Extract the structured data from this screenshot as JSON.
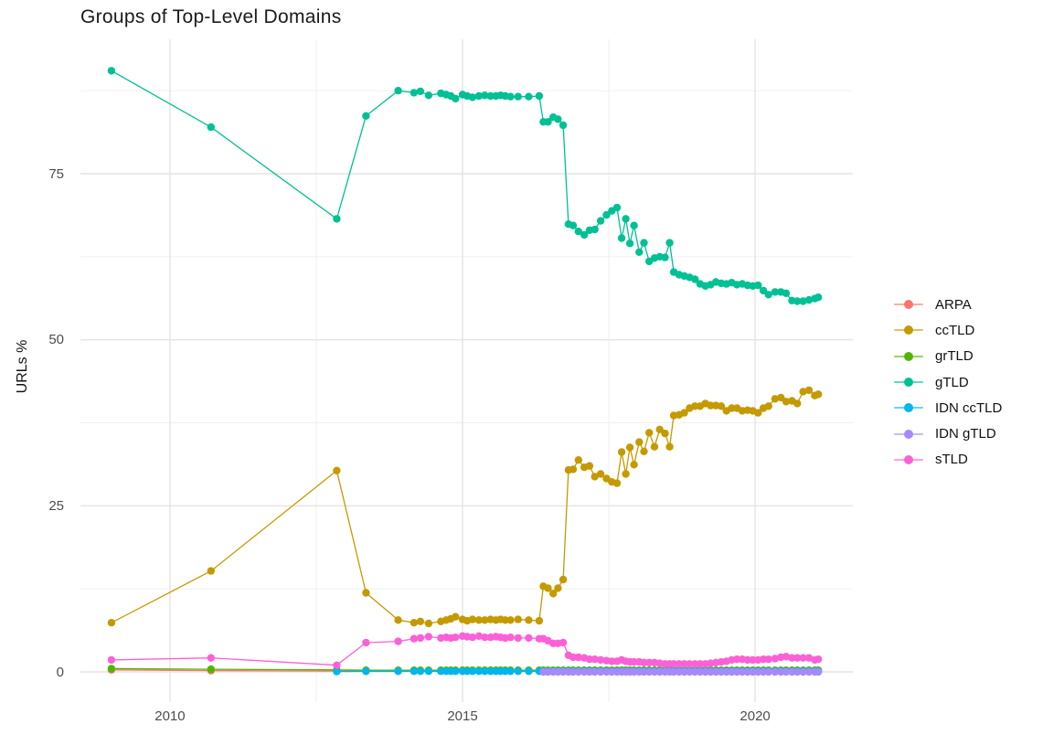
{
  "title": "Groups of Top-Level Domains",
  "axes": {
    "y_label": "URLs %",
    "x_tick_labels": [
      "2010",
      "2015",
      "2020"
    ],
    "y_tick_labels": [
      "0",
      "25",
      "50",
      "75"
    ]
  },
  "legend": {
    "position": "right",
    "items": [
      {
        "label": "ARPA",
        "color": "#F8766D"
      },
      {
        "label": "ccTLD",
        "color": "#C49A00"
      },
      {
        "label": "grTLD",
        "color": "#53B400"
      },
      {
        "label": "gTLD",
        "color": "#00C094"
      },
      {
        "label": "IDN ccTLD",
        "color": "#00B6EB"
      },
      {
        "label": "IDN gTLD",
        "color": "#A58AFF"
      },
      {
        "label": "sTLD",
        "color": "#FB61D7"
      }
    ]
  },
  "chart_data": {
    "type": "line",
    "title": "Groups of Top-Level Domains",
    "xlabel": "",
    "ylabel": "URLs %",
    "xlim": [
      2008.47,
      2021.67
    ],
    "ylim": [
      -4.54,
      95.23
    ],
    "x_major_ticks": [
      2010,
      2015,
      2020
    ],
    "x_minor_gridlines": [
      2012.5,
      2017.5
    ],
    "y_major_ticks": [
      0,
      25,
      50,
      75
    ],
    "y_minor_gridlines": [
      12.5,
      37.5,
      62.5,
      87.5
    ],
    "grid": true,
    "legend_position": "right",
    "x_grid": [
      2013.9,
      2014.17,
      2014.28,
      2014.42,
      2014.63,
      2014.72,
      2014.8,
      2014.88,
      2015.0,
      2015.08,
      2015.17,
      2015.28,
      2015.38,
      2015.48,
      2015.57,
      2015.65,
      2015.73,
      2015.82,
      2015.95,
      2016.13,
      2016.31,
      2016.38,
      2016.46,
      2016.55,
      2016.63,
      2016.72,
      2016.81,
      2016.89,
      2016.98,
      2017.08,
      2017.17,
      2017.26,
      2017.36,
      2017.46,
      2017.55,
      2017.64,
      2017.72,
      2017.79,
      2017.86,
      2017.93,
      2018.02,
      2018.1,
      2018.19,
      2018.28,
      2018.37,
      2018.46,
      2018.54,
      2018.61,
      2018.7,
      2018.79,
      2018.88,
      2018.97,
      2019.06,
      2019.15,
      2019.24,
      2019.33,
      2019.42,
      2019.51,
      2019.6,
      2019.69,
      2019.78,
      2019.87,
      2019.96,
      2020.05,
      2020.14,
      2020.23,
      2020.34,
      2020.44,
      2020.53,
      2020.63,
      2020.72,
      2020.82,
      2020.92,
      2021.02,
      2021.08
    ],
    "series": [
      {
        "name": "ARPA",
        "color": "#F8766D",
        "prefix_points": [
          [
            2009.0,
            0.3
          ],
          [
            2010.7,
            0.2
          ],
          [
            2012.85,
            0.12
          ],
          [
            2013.35,
            0.1
          ]
        ]
      },
      {
        "name": "ccTLD",
        "color": "#C49A00",
        "prefix_points": [
          [
            2009.0,
            7.4
          ],
          [
            2010.7,
            15.2
          ],
          [
            2012.85,
            30.3
          ],
          [
            2013.35,
            11.9
          ]
        ],
        "grid_values": [
          7.8,
          7.4,
          7.6,
          7.3,
          7.6,
          7.8,
          8.0,
          8.3,
          7.9,
          7.7,
          7.9,
          7.8,
          7.8,
          7.9,
          7.8,
          7.9,
          7.8,
          7.8,
          7.9,
          7.8,
          7.7,
          12.9,
          12.6,
          11.8,
          12.6,
          13.9,
          30.4,
          30.5,
          31.9,
          30.8,
          31.0,
          29.4,
          29.8,
          29.1,
          28.6,
          28.4,
          33.1,
          29.8,
          33.8,
          31.2,
          34.6,
          33.2,
          36.0,
          33.9,
          36.5,
          35.9,
          33.9,
          38.6,
          38.7,
          39.0,
          39.7,
          40.0,
          40.0,
          40.4,
          40.1,
          40.1,
          40.0,
          39.3,
          39.7,
          39.7,
          39.3,
          39.4,
          39.3,
          39.0,
          39.7,
          40.0,
          41.1,
          41.3,
          40.7,
          40.8,
          40.4,
          42.2,
          42.4,
          41.6,
          41.8
        ]
      },
      {
        "name": "grTLD",
        "color": "#53B400",
        "prefix_points": [
          [
            2009.0,
            0.5
          ],
          [
            2010.7,
            0.4
          ],
          [
            2012.85,
            0.3
          ],
          [
            2013.35,
            0.25
          ]
        ],
        "grid_const": 0.25
      },
      {
        "name": "gTLD",
        "color": "#00C094",
        "prefix_points": [
          [
            2009.0,
            90.5
          ],
          [
            2010.7,
            82.0
          ],
          [
            2012.85,
            68.2
          ],
          [
            2013.35,
            83.7
          ]
        ],
        "grid_values": [
          87.5,
          87.2,
          87.4,
          86.8,
          87.1,
          86.9,
          86.7,
          86.3,
          86.9,
          86.7,
          86.5,
          86.7,
          86.8,
          86.7,
          86.7,
          86.8,
          86.7,
          86.6,
          86.6,
          86.6,
          86.7,
          82.8,
          82.8,
          83.5,
          83.2,
          82.3,
          67.4,
          67.2,
          66.3,
          65.8,
          66.5,
          66.6,
          67.9,
          68.8,
          69.4,
          69.9,
          65.3,
          68.2,
          64.5,
          67.2,
          63.2,
          64.6,
          61.8,
          62.3,
          62.5,
          62.4,
          64.6,
          60.2,
          59.8,
          59.6,
          59.4,
          59.1,
          58.4,
          58.1,
          58.3,
          58.7,
          58.5,
          58.4,
          58.6,
          58.3,
          58.4,
          58.2,
          58.1,
          58.2,
          57.4,
          56.8,
          57.2,
          57.2,
          57.0,
          55.9,
          55.8,
          55.8,
          56.0,
          56.2,
          56.4
        ]
      },
      {
        "name": "IDN ccTLD",
        "color": "#00B6EB",
        "prefix_points": [
          [
            2012.85,
            0.05
          ],
          [
            2013.35,
            0.1
          ]
        ],
        "grid_const": 0.1
      },
      {
        "name": "IDN gTLD",
        "color": "#A58AFF",
        "prefix_points": [],
        "grid_const": 0.0,
        "grid_from": 2016.38
      },
      {
        "name": "sTLD",
        "color": "#FB61D7",
        "prefix_points": [
          [
            2009.0,
            1.8
          ],
          [
            2010.7,
            2.1
          ],
          [
            2012.85,
            1.0
          ],
          [
            2013.35,
            4.4
          ]
        ],
        "grid_values": [
          4.6,
          5.0,
          5.1,
          5.3,
          5.1,
          5.2,
          5.1,
          5.2,
          5.4,
          5.3,
          5.2,
          5.4,
          5.2,
          5.2,
          5.3,
          5.2,
          5.1,
          5.2,
          5.1,
          5.1,
          5.0,
          5.0,
          4.7,
          4.3,
          4.3,
          4.4,
          2.5,
          2.2,
          2.2,
          2.1,
          1.9,
          1.9,
          1.8,
          1.7,
          1.6,
          1.6,
          1.8,
          1.6,
          1.5,
          1.5,
          1.5,
          1.4,
          1.4,
          1.4,
          1.3,
          1.2,
          1.2,
          1.2,
          1.2,
          1.2,
          1.2,
          1.2,
          1.2,
          1.2,
          1.3,
          1.4,
          1.5,
          1.6,
          1.8,
          1.9,
          1.9,
          1.8,
          1.8,
          1.8,
          1.9,
          1.9,
          2.0,
          2.2,
          2.3,
          2.1,
          2.1,
          2.1,
          2.1,
          1.8,
          1.9
        ]
      }
    ]
  }
}
